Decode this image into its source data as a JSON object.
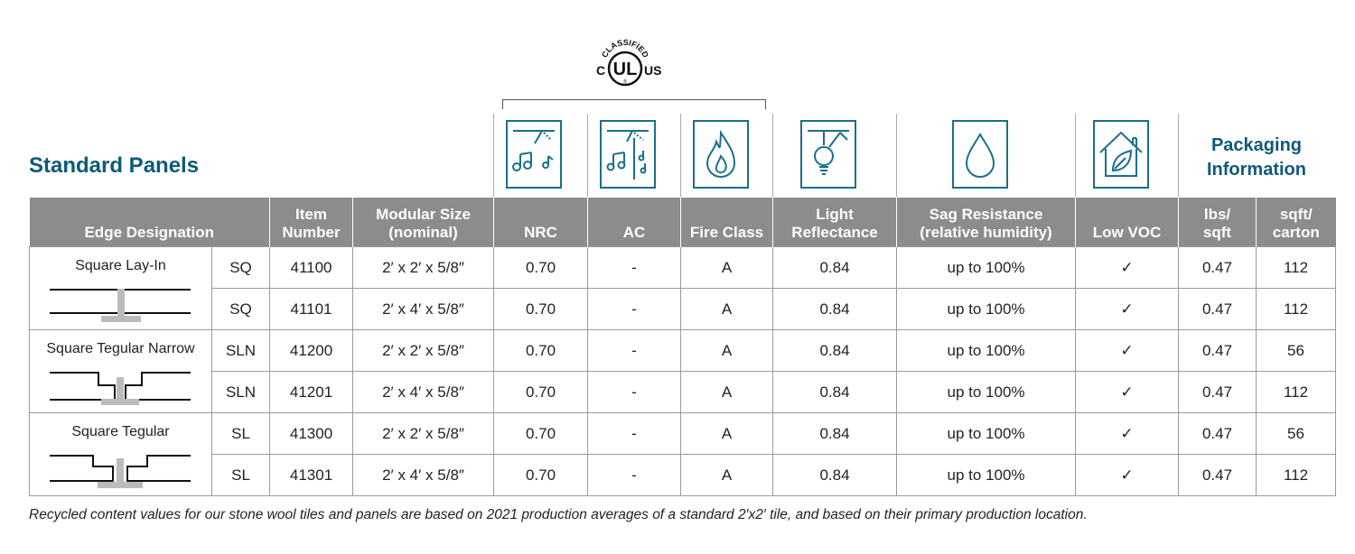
{
  "title": "Standard Panels",
  "logo": {
    "top_text": "CLASSIFIED",
    "left_letter": "C",
    "center_text": "UL",
    "right_text": "US",
    "reg": "®"
  },
  "icons": [
    "nrc-sound-icon",
    "ac-sound-icon",
    "fire-icon",
    "light-bulb-icon",
    "water-drop-icon",
    "house-leaf-icon"
  ],
  "packaging_header": {
    "line1": "Packaging",
    "line2": "Information"
  },
  "columns": {
    "edge": "Edge Designation",
    "item": {
      "l1": "Item",
      "l2": "Number"
    },
    "size": {
      "l1": "Modular Size",
      "l2": "(nominal)"
    },
    "nrc": "NRC",
    "ac": "AC",
    "fire": "Fire Class",
    "light": {
      "l1": "Light",
      "l2": "Reflectance"
    },
    "sag": {
      "l1": "Sag Resistance",
      "l2": "(relative humidity)"
    },
    "voc": "Low VOC",
    "lbs": {
      "l1": "lbs/",
      "l2": "sqft"
    },
    "sqft": {
      "l1": "sqft/",
      "l2": "carton"
    }
  },
  "groups": [
    {
      "edge_name": "Square Lay-In",
      "profile": "lay-in"
    },
    {
      "edge_name": "Square Tegular Narrow",
      "profile": "tegular-narrow"
    },
    {
      "edge_name": "Square Tegular",
      "profile": "tegular"
    }
  ],
  "rows": [
    {
      "code": "SQ",
      "item": "41100",
      "size": "2′ x 2′ x 5/8″",
      "nrc": "0.70",
      "ac": "-",
      "fire": "A",
      "lr": "0.84",
      "sag": "up to 100%",
      "voc": "✓",
      "lbs": "0.47",
      "sqft": "112"
    },
    {
      "code": "SQ",
      "item": "41101",
      "size": "2′ x 4′ x 5/8″",
      "nrc": "0.70",
      "ac": "-",
      "fire": "A",
      "lr": "0.84",
      "sag": "up to 100%",
      "voc": "✓",
      "lbs": "0.47",
      "sqft": "112"
    },
    {
      "code": "SLN",
      "item": "41200",
      "size": "2′ x 2′ x 5/8″",
      "nrc": "0.70",
      "ac": "-",
      "fire": "A",
      "lr": "0.84",
      "sag": "up to 100%",
      "voc": "✓",
      "lbs": "0.47",
      "sqft": "56"
    },
    {
      "code": "SLN",
      "item": "41201",
      "size": "2′ x 4′ x 5/8″",
      "nrc": "0.70",
      "ac": "-",
      "fire": "A",
      "lr": "0.84",
      "sag": "up to 100%",
      "voc": "✓",
      "lbs": "0.47",
      "sqft": "112"
    },
    {
      "code": "SL",
      "item": "41300",
      "size": "2′ x 2′ x 5/8″",
      "nrc": "0.70",
      "ac": "-",
      "fire": "A",
      "lr": "0.84",
      "sag": "up to 100%",
      "voc": "✓",
      "lbs": "0.47",
      "sqft": "56"
    },
    {
      "code": "SL",
      "item": "41301",
      "size": "2′ x 4′ x 5/8″",
      "nrc": "0.70",
      "ac": "-",
      "fire": "A",
      "lr": "0.84",
      "sag": "up to 100%",
      "voc": "✓",
      "lbs": "0.47",
      "sqft": "112"
    }
  ],
  "footnote": "Recycled content values for our stone wool tiles and panels are based on 2021 production averages of a standard 2′x2′ tile, and based on their primary production location.",
  "colors": {
    "brand": "#0e5a7a",
    "header_bg": "#8a8c8e",
    "icon": "#1a6f8c"
  }
}
